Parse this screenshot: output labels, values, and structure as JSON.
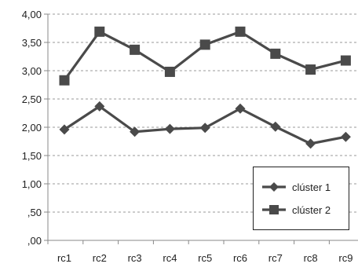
{
  "chart_data": {
    "type": "line",
    "categories": [
      "rc1",
      "rc2",
      "rc3",
      "rc4",
      "rc5",
      "rc6",
      "rc7",
      "rc8",
      "rc9"
    ],
    "series": [
      {
        "name": "clúster 1",
        "marker": "diamond-icon",
        "color": "#4a4a4a",
        "values": [
          1.96,
          2.37,
          1.92,
          1.97,
          1.99,
          2.33,
          2.01,
          1.71,
          1.83
        ]
      },
      {
        "name": "clúster 2",
        "marker": "square-icon",
        "color": "#4a4a4a",
        "values": [
          2.83,
          3.69,
          3.37,
          2.98,
          3.46,
          3.69,
          3.3,
          3.02,
          3.18
        ]
      }
    ],
    "ylim": [
      0,
      4
    ],
    "yticks": [
      0,
      0.5,
      1,
      1.5,
      2,
      2.5,
      3,
      3.5,
      4
    ],
    "ytick_labels": [
      ",00",
      ",50",
      "1,00",
      "1,50",
      "2,00",
      "2,50",
      "3,00",
      "3,50",
      "4,00"
    ],
    "grid": true,
    "legend": "bottom-right",
    "colors": {
      "axis": "#888888",
      "grid": "#999999",
      "line": "#4a4a4a"
    }
  }
}
